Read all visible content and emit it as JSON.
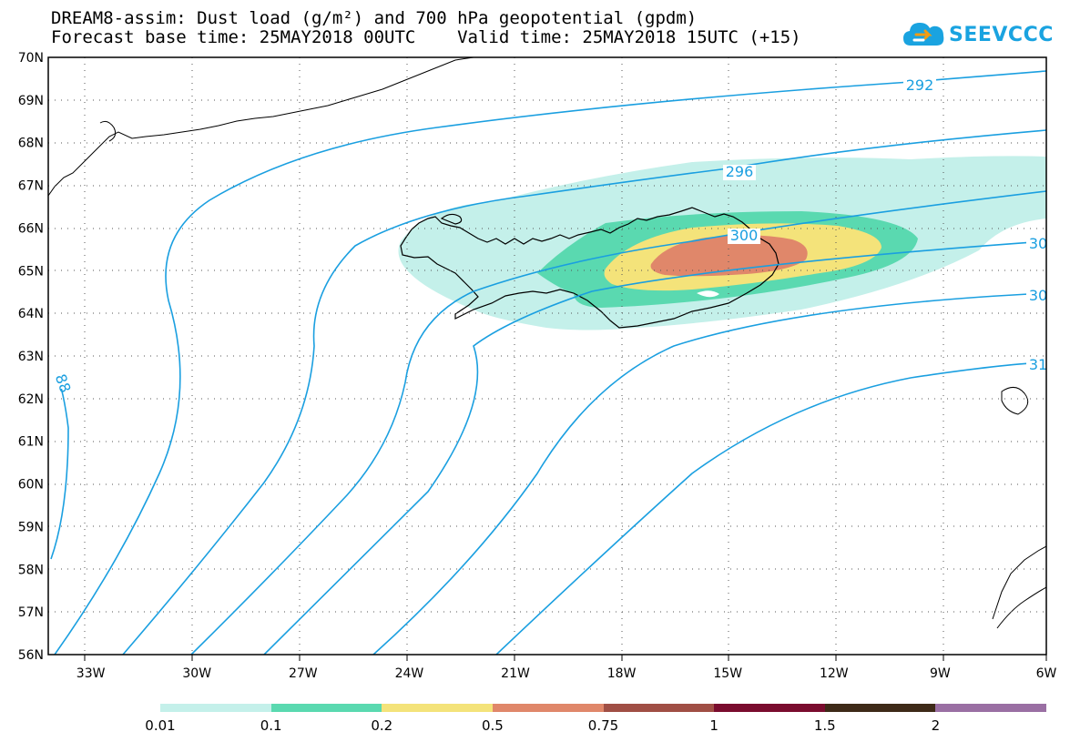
{
  "title": {
    "line1": "DREAM8-assim: Dust load (g/m²) and 700 hPa geopotential (gpdm)",
    "line2": "Forecast base time: 25MAY2018 00UTC    Valid time: 25MAY2018 15UTC (+15)"
  },
  "logo": {
    "text": "SEEVCCC",
    "icon": "cloud-logo-icon",
    "color": "#1aa3e0"
  },
  "map": {
    "lat_labels": [
      "70N",
      "69N",
      "68N",
      "67N",
      "66N",
      "65N",
      "64N",
      "63N",
      "62N",
      "61N",
      "60N",
      "59N",
      "58N",
      "57N",
      "56N"
    ],
    "lon_labels": [
      "33W",
      "30W",
      "27W",
      "24W",
      "21W",
      "18W",
      "15W",
      "12W",
      "9W",
      "6W"
    ],
    "lat_range": [
      56,
      70
    ],
    "lon_range": [
      -34.2,
      -6
    ],
    "contour_color": "#1a9fe0",
    "contours": [
      {
        "label": "292"
      },
      {
        "label": "296"
      },
      {
        "label": "300"
      },
      {
        "label": "30"
      },
      {
        "label": "30"
      },
      {
        "label": "31"
      },
      {
        "label": "88"
      }
    ],
    "dust_levels_colors": [
      "#c4f0ea",
      "#5ad9b0",
      "#f4e37a",
      "#e0876a"
    ]
  },
  "colorbar": {
    "colors": [
      "#c4f0ea",
      "#5ad9b0",
      "#f4e37a",
      "#e0876a",
      "#a04f45",
      "#7a0c2e",
      "#3e2a18",
      "#9a6fa3"
    ],
    "labels": [
      "0.01",
      "0.1",
      "0.2",
      "0.5",
      "0.75",
      "1",
      "1.5",
      "2"
    ]
  }
}
